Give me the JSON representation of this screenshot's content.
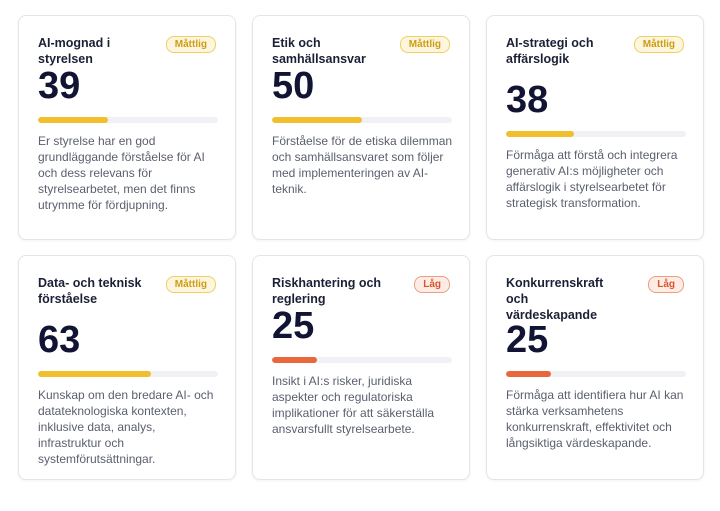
{
  "colors": {
    "moderate": "#f1be2c",
    "low": "#e8683b",
    "score_text": "#111433"
  },
  "cards": [
    {
      "title": "AI-mognad i styrelsen",
      "badge": "Måttlig",
      "level": "moderate",
      "score": "39",
      "progress_fraction": 0.39,
      "description": "Er styrelse har en god grundläggande förståelse för AI och dess relevans för styrelsearbetet, men det finns utrymme för fördjupning."
    },
    {
      "title": "Etik och samhällsansvar",
      "badge": "Måttlig",
      "level": "moderate",
      "score": "50",
      "progress_fraction": 0.5,
      "description": "Förståelse för de etiska dilemman och samhällsansvaret som följer med implementeringen av AI-teknik."
    },
    {
      "title": "AI-strategi och affärslogik",
      "badge": "Måttlig",
      "level": "moderate",
      "score": "38",
      "progress_fraction": 0.38,
      "description": "Förmåga att förstå och integrera generativ AI:s möjligheter och affärslogik i styrelsearbetet för strategisk transformation."
    },
    {
      "title": "Data- och teknisk förståelse",
      "badge": "Måttlig",
      "level": "moderate",
      "score": "63",
      "progress_fraction": 0.63,
      "description": "Kunskap om den bredare AI- och datateknologiska kontexten, inklusive data, analys, infrastruktur och systemförutsättningar."
    },
    {
      "title": "Riskhantering och reglering",
      "badge": "Låg",
      "level": "low",
      "score": "25",
      "progress_fraction": 0.25,
      "description": "Insikt i AI:s risker, juridiska aspekter och regulatoriska implikationer för att säkerställa ansvarsfullt styrelsearbete."
    },
    {
      "title": "Konkurrenskraft och värdeskapande",
      "badge": "Låg",
      "level": "low",
      "score": "25",
      "progress_fraction": 0.25,
      "description": "Förmåga att identifiera hur AI kan stärka verksamhetens konkurrenskraft, effektivitet och långsiktiga värdeskapande."
    }
  ]
}
